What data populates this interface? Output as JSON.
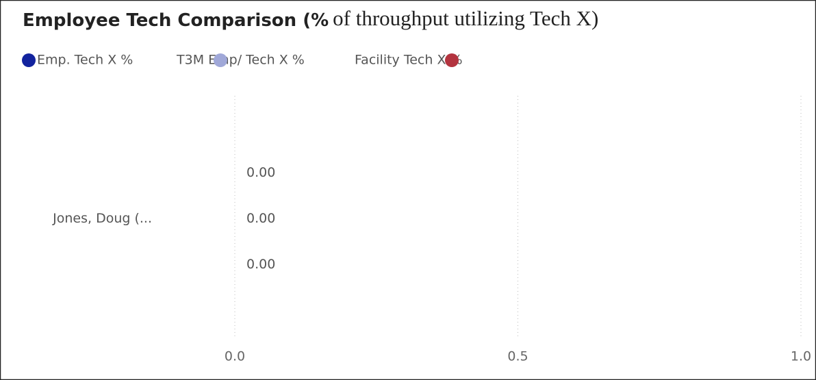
{
  "chart_data": {
    "type": "bar",
    "orientation": "horizontal",
    "title": [
      "Employee Tech Comparison (%",
      "of throughput utilizing Tech X)"
    ],
    "categories": [
      "Jones, Doug (..."
    ],
    "series": [
      {
        "name": "Emp. Tech X %",
        "color": "#12239e",
        "values": [
          0
        ],
        "value_labels": [
          "0.00"
        ]
      },
      {
        "name": "T3M Emp/ Tech X %",
        "color": "#a0a8d8",
        "values": [
          0
        ],
        "value_labels": [
          "0.00"
        ]
      },
      {
        "name": "Facility Tech X %",
        "color": "#b3343f",
        "values": [
          0
        ],
        "value_labels": [
          "0.00"
        ]
      }
    ],
    "xlim": [
      0,
      1
    ],
    "xticks": [
      {
        "value": 0,
        "label": "0.0"
      },
      {
        "value": 0.5,
        "label": "0.5"
      },
      {
        "value": 1,
        "label": "1.0"
      }
    ],
    "grid": true,
    "legend": "top-left"
  }
}
